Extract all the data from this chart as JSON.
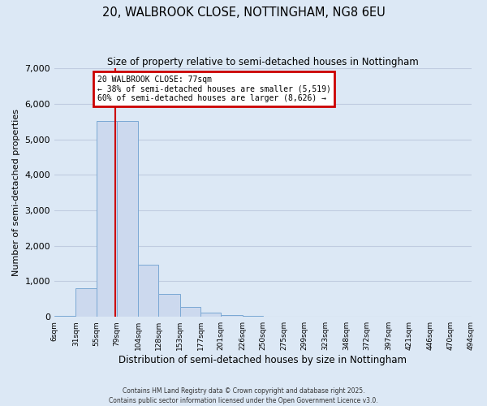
{
  "title_line1": "20, WALBROOK CLOSE, NOTTINGHAM, NG8 6EU",
  "title_line2": "Size of property relative to semi-detached houses in Nottingham",
  "xlabel": "Distribution of semi-detached houses by size in Nottingham",
  "ylabel": "Number of semi-detached properties",
  "bar_left_edges": [
    6,
    31,
    55,
    79,
    104,
    128,
    153,
    177,
    201,
    226,
    250,
    275,
    299,
    323,
    348,
    372,
    397,
    421,
    446,
    470
  ],
  "bar_widths": [
    25,
    24,
    24,
    25,
    24,
    25,
    24,
    24,
    25,
    24,
    25,
    24,
    24,
    25,
    24,
    25,
    24,
    25,
    24,
    24
  ],
  "bar_heights": [
    30,
    800,
    5520,
    5520,
    1480,
    650,
    280,
    130,
    50,
    30,
    15,
    10,
    5,
    5,
    3,
    3,
    2,
    2,
    1,
    1
  ],
  "bar_color": "#ccd9ee",
  "bar_edgecolor": "#7aa8d4",
  "tick_labels": [
    "6sqm",
    "31sqm",
    "55sqm",
    "79sqm",
    "104sqm",
    "128sqm",
    "153sqm",
    "177sqm",
    "201sqm",
    "226sqm",
    "250sqm",
    "275sqm",
    "299sqm",
    "323sqm",
    "348sqm",
    "372sqm",
    "397sqm",
    "421sqm",
    "446sqm",
    "470sqm",
    "494sqm"
  ],
  "ylim": [
    0,
    7000
  ],
  "yticks": [
    0,
    1000,
    2000,
    3000,
    4000,
    5000,
    6000,
    7000
  ],
  "property_line_x": 77,
  "annotation_title": "20 WALBROOK CLOSE: 77sqm",
  "annotation_line1": "← 38% of semi-detached houses are smaller (5,519)",
  "annotation_line2": "60% of semi-detached houses are larger (8,626) →",
  "annotation_box_color": "#ffffff",
  "annotation_box_edgecolor": "#cc0000",
  "grid_color": "#c0cce0",
  "bg_color": "#dce8f5",
  "footer_line1": "Contains HM Land Registry data © Crown copyright and database right 2025.",
  "footer_line2": "Contains public sector information licensed under the Open Government Licence v3.0."
}
